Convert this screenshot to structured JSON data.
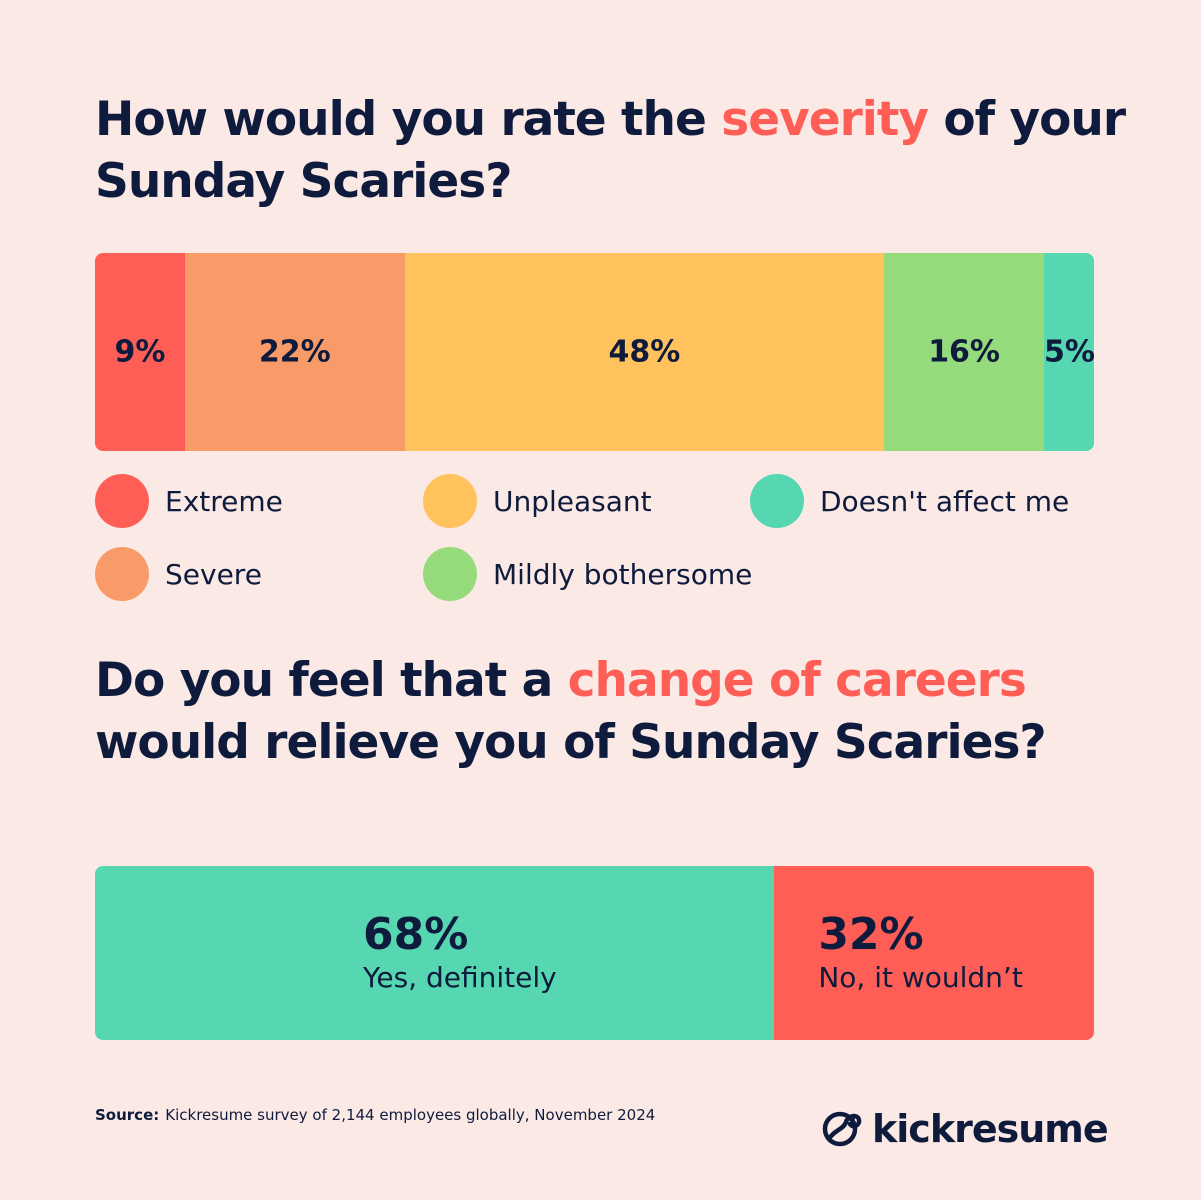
{
  "q1": {
    "title_pre": "How would you rate the ",
    "title_hl": "severity",
    "title_post": " of your Sunday Scaries?"
  },
  "q2": {
    "title_pre": "Do you feel that a ",
    "title_hl": "change of careers",
    "title_post": " would relieve you of Sunday Scaries?"
  },
  "chart_data": [
    {
      "type": "bar",
      "orientation": "horizontal-stacked",
      "categories": [
        "Extreme",
        "Severe",
        "Unpleasant",
        "Mildly bothersome",
        "Doesn't affect me"
      ],
      "values": [
        9,
        22,
        48,
        16,
        5
      ],
      "labels": [
        "9%",
        "22%",
        "48%",
        "16%",
        "5%"
      ],
      "colors": [
        "#ff5e57",
        "#f89b68",
        "#ffc25c",
        "#95db7b",
        "#56d6b1"
      ],
      "legend_placement": "bottom"
    },
    {
      "type": "bar",
      "orientation": "horizontal-stacked",
      "categories": [
        "Yes, definitely",
        "No, it wouldn’t"
      ],
      "values": [
        68,
        32
      ],
      "labels": [
        "68%",
        "32%"
      ],
      "colors": [
        "#56d6b1",
        "#ff5e57"
      ]
    }
  ],
  "legend": [
    {
      "label": "Extreme",
      "color": "#ff5e57"
    },
    {
      "label": "Severe",
      "color": "#f89b68"
    },
    {
      "label": "Unpleasant",
      "color": "#ffc25c"
    },
    {
      "label": "Mildly bothersome",
      "color": "#95db7b"
    },
    {
      "label": "Doesn't affect me",
      "color": "#56d6b1"
    }
  ],
  "source": {
    "label": "Source:",
    "text": "Kickresume survey of 2,144 employees globally, November 2024"
  },
  "brand": {
    "name": "kickresume",
    "icon": "kickresume-logo-icon"
  }
}
